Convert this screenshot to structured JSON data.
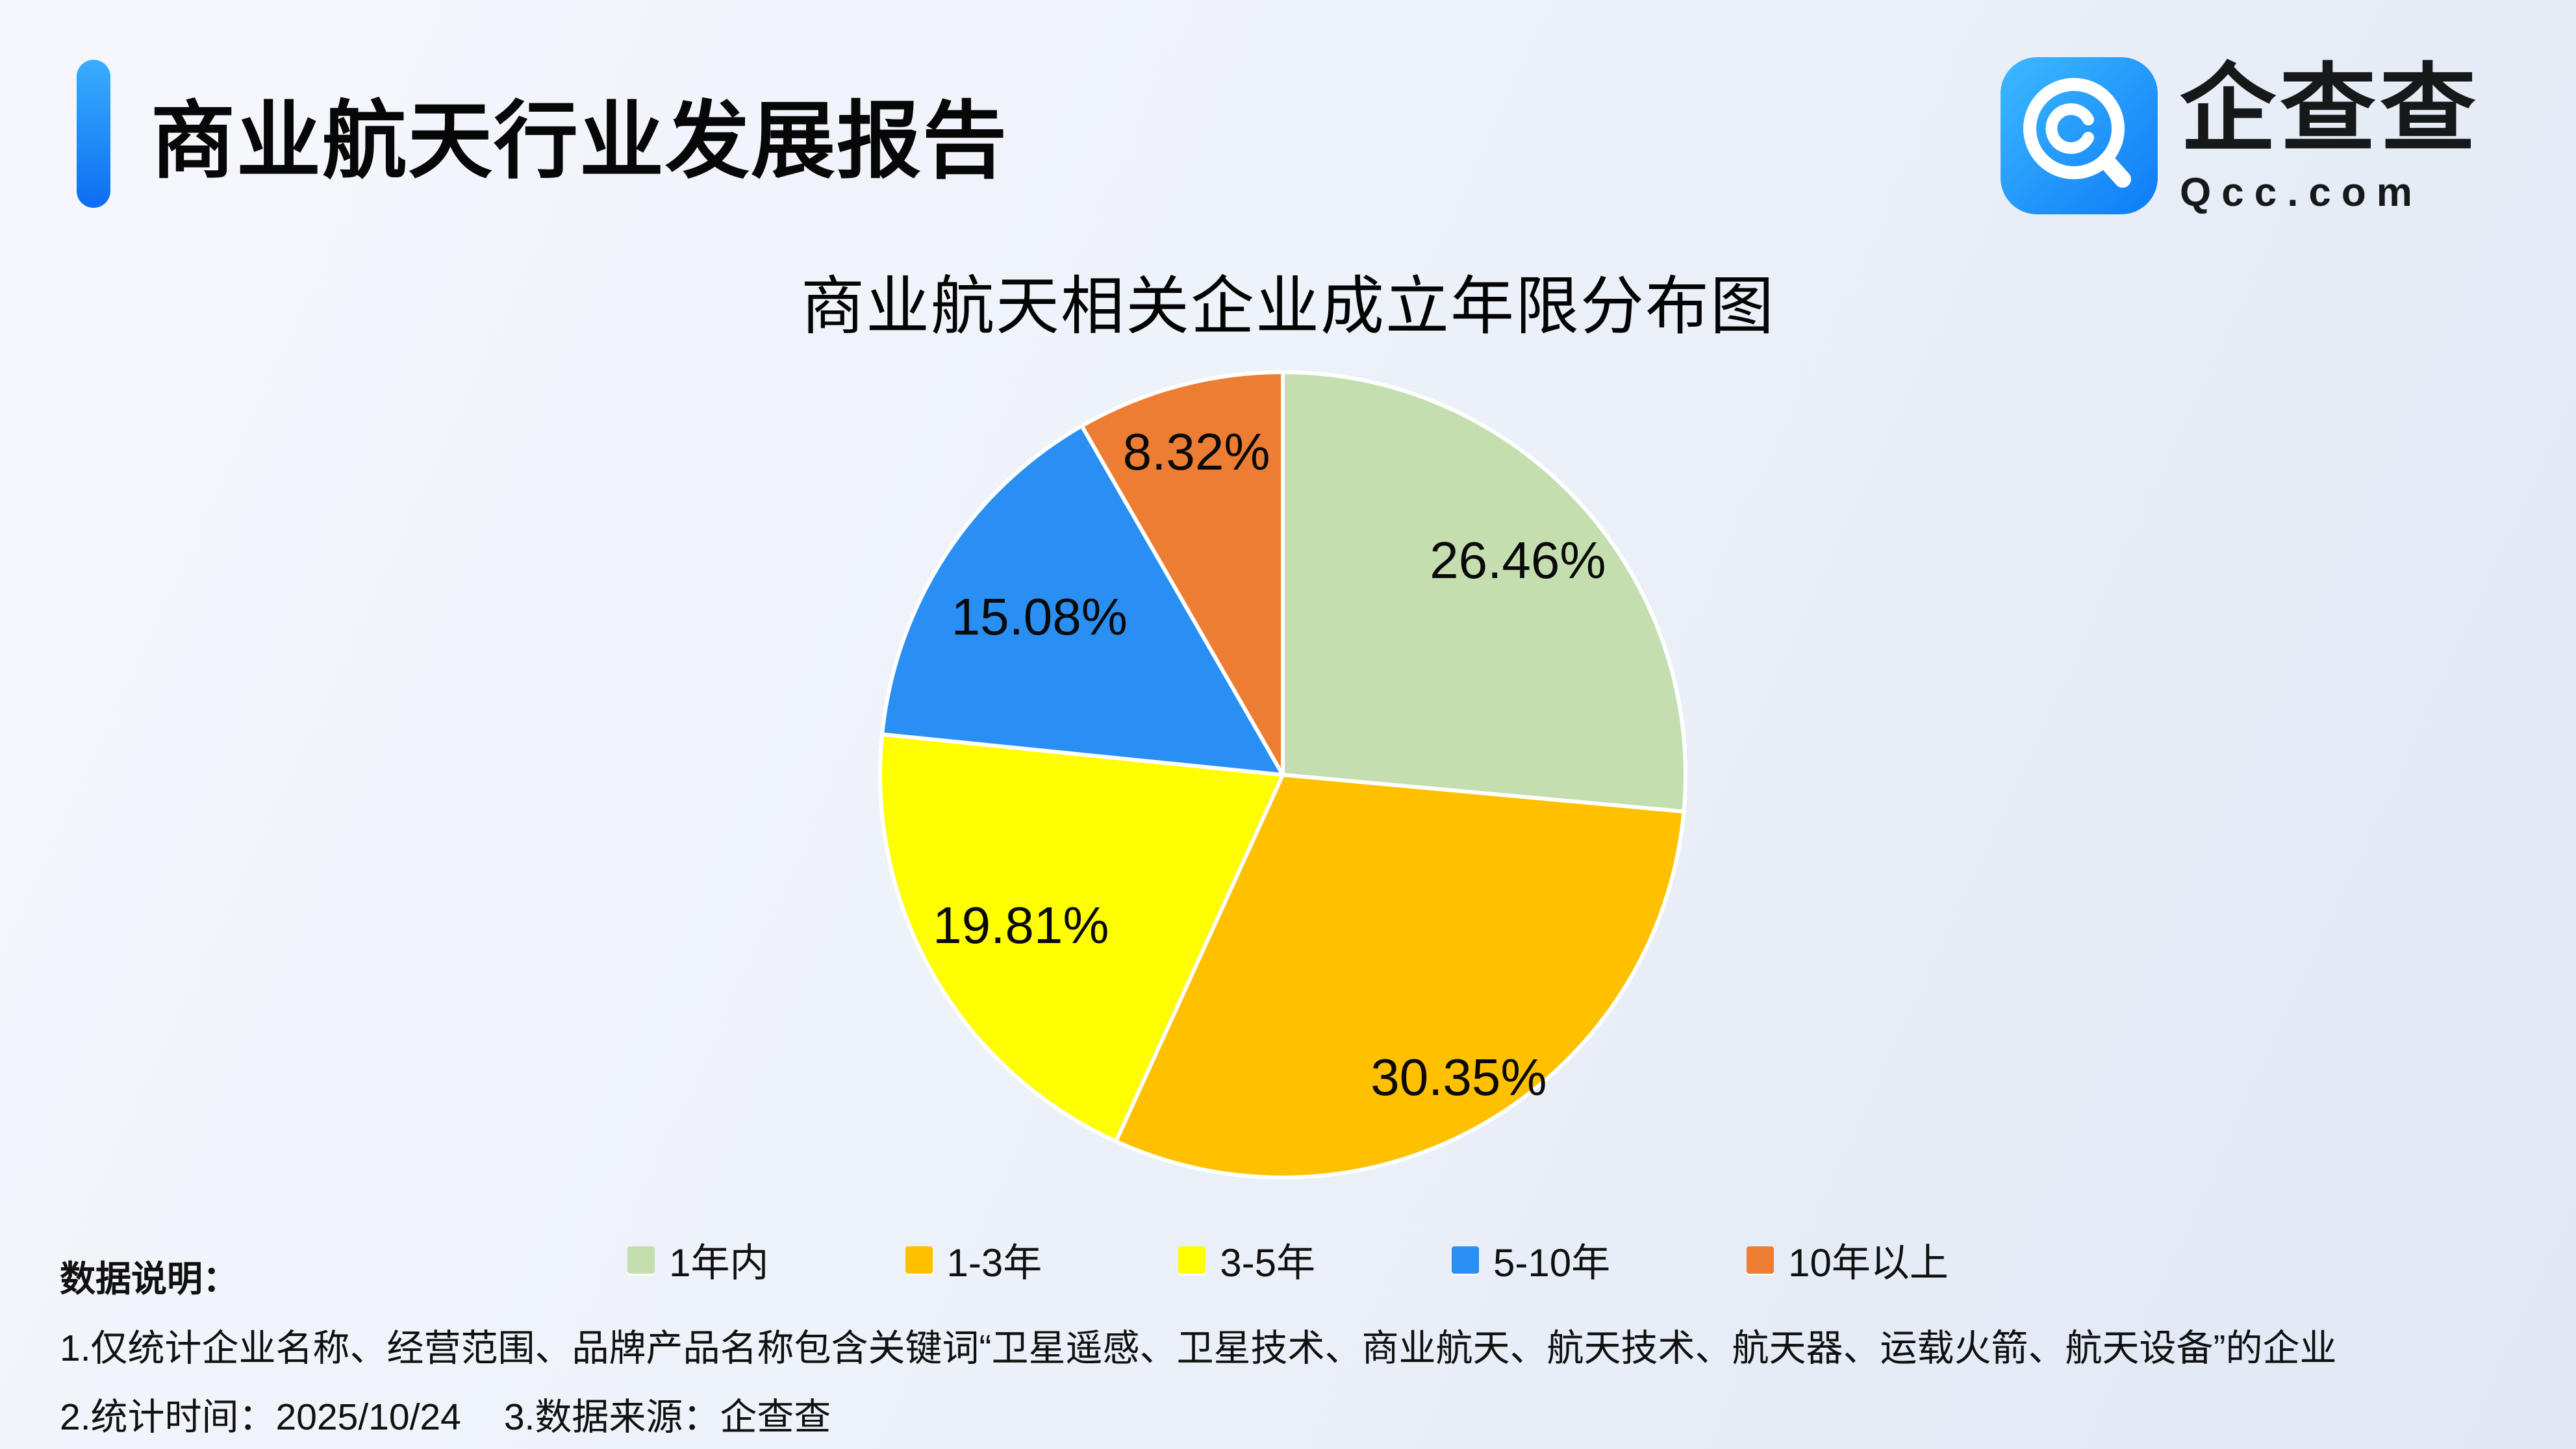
{
  "header": {
    "title": "商业航天行业发展报告"
  },
  "logo": {
    "brand": "企查查",
    "domain": "Qcc.com",
    "icon": "qcc-magnifier-icon",
    "icon_gradient": [
      "#3cbaff",
      "#0e7bf8"
    ]
  },
  "colors": {
    "accent_bar": "#0d6df2",
    "background_start": "#f5f7fc",
    "background_end": "#e0e8f4",
    "text": "#101010",
    "slice_divider": "#ffffff"
  },
  "chart_data": {
    "type": "pie",
    "title": "商业航天相关企业成立年限分布图",
    "unit": "percent",
    "start_angle": "top",
    "direction": "clockwise",
    "legend_position": "bottom",
    "slices": [
      {
        "label": "1年内",
        "value": 26.46,
        "display": "26.46%",
        "color": "#c5deb0",
        "label_radius": 0.79
      },
      {
        "label": "1-3年",
        "value": 30.35,
        "display": "30.35%",
        "color": "#ffc000",
        "label_radius": 0.87
      },
      {
        "label": "3-5年",
        "value": 19.81,
        "display": "19.81%",
        "color": "#fffe00",
        "label_radius": 0.75
      },
      {
        "label": "5-10年",
        "value": 15.08,
        "display": "15.08%",
        "color": "#2a8ff2",
        "label_radius": 0.72
      },
      {
        "label": "10年以上",
        "value": 8.32,
        "display": "8.32%",
        "color": "#ec7d33",
        "label_radius": 0.83
      }
    ]
  },
  "notes": {
    "heading": "数据说明：",
    "line1": "1.仅统计企业名称、经营范围、品牌产品名称包含关键词“卫星遥感、卫星技术、商业航天、航天技术、航天器、运载火箭、航天设备”的企业",
    "line2_time": "2.统计时间：2025/10/24",
    "line2_source": "3.数据来源：企查查"
  }
}
